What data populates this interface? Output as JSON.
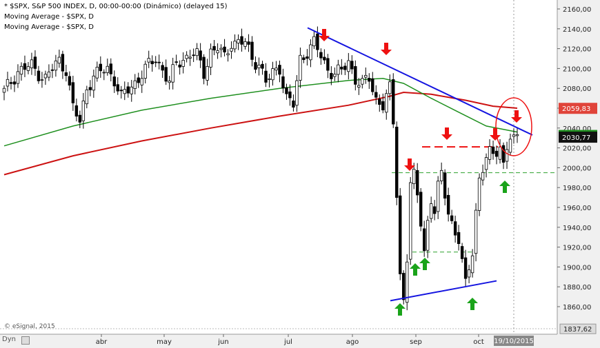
{
  "legend": {
    "line1": "* $SPX, S&P 500 INDEX, D, 00:00-00:00 (Dinámico) (delayed 15)",
    "line2": "Moving Average - $SPX, D",
    "line3": "Moving Average - $SPX, D"
  },
  "watermark": "© eSignal, 2015",
  "footer_left": "Dyn",
  "colors": {
    "up": "#ffffff",
    "down": "#000000",
    "ma_short": "#1e8f1e",
    "ma_long": "#cc1111",
    "trendline": "#1414e0",
    "resistance_dash": "#ee1111",
    "support_dash": "#2ca02c",
    "arrow_down": "#ee1111",
    "arrow_up": "#1aa31a",
    "last_price_bg": "#111111",
    "ma_long_label_bg": "#e0443a"
  },
  "chart_data": {
    "type": "candlestick",
    "title": "* $SPX, S&P 500 INDEX, D, 00:00-00:00 (Dinámico) (delayed 15)",
    "y_ticks": [
      "2160,00",
      "2140,00",
      "2120,00",
      "2100,00",
      "2080,00",
      "2060,00",
      "2040,00",
      "2020,00",
      "2000,00",
      "1980,00",
      "1960,00",
      "1940,00",
      "1920,00",
      "1900,00",
      "1880,00",
      "1860,00"
    ],
    "y_bottom_label": "1837,62",
    "ylim": [
      1837.62,
      2166
    ],
    "x_ticks": [
      "abr",
      "may",
      "jun",
      "jul",
      "ago",
      "sep",
      "oct"
    ],
    "x_current_label": "19/10/2015",
    "last_price": "2030,77",
    "ma_long_value": "2059,83",
    "ma_short_value": "2036,00",
    "levels": {
      "resistance_dashed": 2021,
      "support_dashed_upper": 1995,
      "support_dashed_lower": 1915
    },
    "series": [
      {
        "name": "Moving Average - $SPX, D",
        "color": "green"
      },
      {
        "name": "Moving Average - $SPX, D",
        "color": "red"
      }
    ]
  }
}
